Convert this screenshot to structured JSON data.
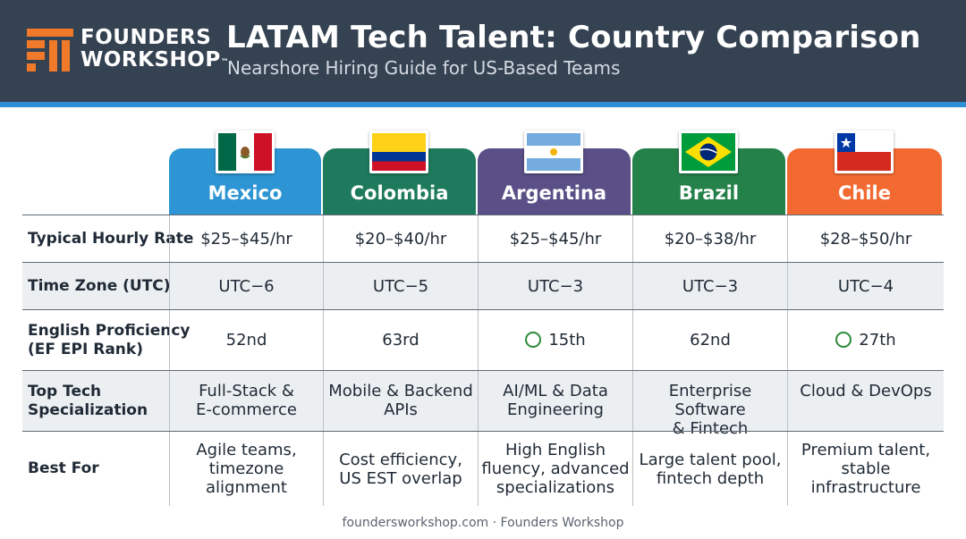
{
  "header": {
    "logo_line1": "FOUNDERS",
    "logo_line2": "WORKSHOP",
    "logo_tm": "™",
    "title": "LATAM Tech Talent: Country Comparison",
    "subtitle": "Nearshore Hiring Guide for US-Based Teams"
  },
  "colors": {
    "header_bg": "#354252",
    "accent_stripe": "#2f8fd6",
    "logo_orange": "#f07a2a",
    "mexico": "#2d95d3",
    "colombia": "#1d7a5c",
    "argentina": "#5a4f86",
    "brazil": "#24814a",
    "chile": "#f26a32",
    "check_green": "#2e8b3a"
  },
  "countries": [
    {
      "name": "Mexico",
      "flag": "mexico-flag-icon"
    },
    {
      "name": "Colombia",
      "flag": "colombia-flag-icon"
    },
    {
      "name": "Argentina",
      "flag": "argentina-flag-icon"
    },
    {
      "name": "Brazil",
      "flag": "brazil-flag-icon"
    },
    {
      "name": "Chile",
      "flag": "chile-flag-icon"
    }
  ],
  "rows": [
    {
      "label": "Typical Hourly Rate",
      "values": [
        "$25–$45/hr",
        "$20–$40/hr",
        "$25–$45/hr",
        "$20–$38/hr",
        "$28–$50/hr"
      ]
    },
    {
      "label": "Time Zone (UTC)",
      "values": [
        "UTC−6",
        "UTC−5",
        "UTC−3",
        "UTC−3",
        "UTC−4"
      ]
    },
    {
      "label_line1": "English Proficiency",
      "label_line2": "(EF EPI Rank)",
      "values": [
        "52nd",
        "63rd",
        "15th",
        "62nd",
        "27th"
      ],
      "highlight_icon": "circle-check-icon"
    },
    {
      "label_line1": "Top Tech",
      "label_line2": "Specialization",
      "values": [
        [
          "Full-Stack &",
          "E-commerce"
        ],
        [
          "Mobile & Backend",
          "APIs"
        ],
        [
          "AI/ML & Data",
          "Engineering"
        ],
        [
          "Enterprise Software",
          "& Fintech"
        ],
        [
          "Cloud & DevOps"
        ]
      ]
    },
    {
      "label": "Best For",
      "values": [
        [
          "Agile teams,",
          "timezone alignment"
        ],
        [
          "Cost efficiency,",
          "US EST overlap"
        ],
        [
          "High English",
          "fluency, advanced",
          "specializations"
        ],
        [
          "Large talent pool,",
          "fintech depth"
        ],
        [
          "Premium talent,",
          "stable infrastructure"
        ]
      ]
    }
  ],
  "footer": "foundersworkshop.com · Founders Workshop"
}
